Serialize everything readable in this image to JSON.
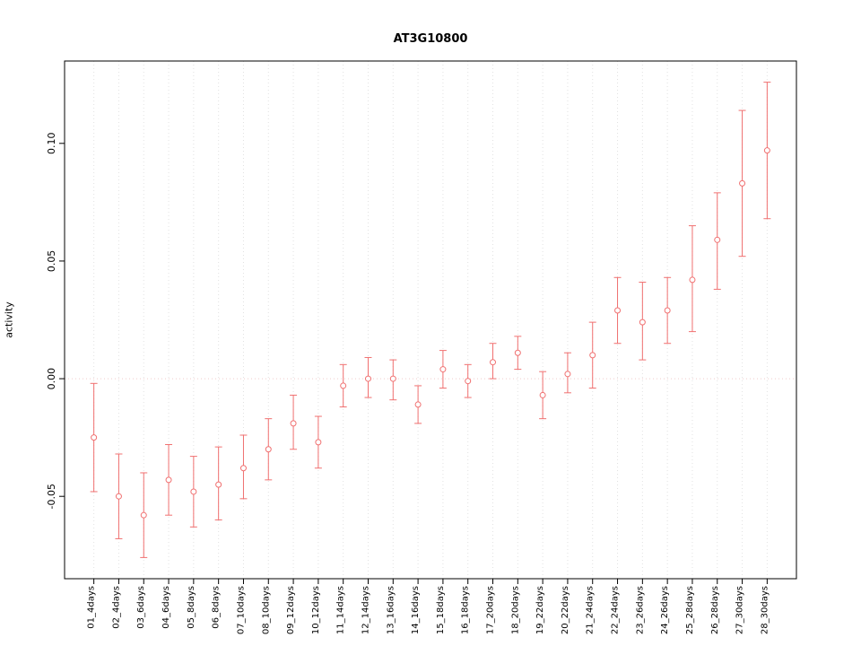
{
  "title": "AT3G10800",
  "ylabel": "activity",
  "chart_data": {
    "type": "scatter",
    "title": "AT3G10800",
    "xlabel": "",
    "ylabel": "activity",
    "legend": "none",
    "grid": true,
    "categories": [
      "01_4days",
      "02_4days",
      "03_6days",
      "04_6days",
      "05_8days",
      "06_8days",
      "07_10days",
      "08_10days",
      "09_12days",
      "10_12days",
      "11_14days",
      "12_14days",
      "13_16days",
      "14_16days",
      "15_18days",
      "16_18days",
      "17_20days",
      "18_20days",
      "19_22days",
      "20_22days",
      "21_24days",
      "22_24days",
      "23_26days",
      "24_26days",
      "25_28days",
      "26_28days",
      "27_30days",
      "28_30days"
    ],
    "values": [
      -0.025,
      -0.05,
      -0.058,
      -0.043,
      -0.048,
      -0.045,
      -0.038,
      -0.03,
      -0.019,
      -0.027,
      -0.003,
      0.0,
      0.0,
      -0.011,
      0.004,
      -0.001,
      0.007,
      0.011,
      -0.007,
      0.002,
      0.01,
      0.029,
      0.024,
      0.029,
      0.042,
      0.059,
      0.083,
      0.097
    ],
    "error_low": [
      -0.048,
      -0.068,
      -0.076,
      -0.058,
      -0.063,
      -0.06,
      -0.051,
      -0.043,
      -0.03,
      -0.038,
      -0.012,
      -0.008,
      -0.009,
      -0.019,
      -0.004,
      -0.008,
      0.0,
      0.004,
      -0.017,
      -0.006,
      -0.004,
      0.015,
      0.008,
      0.015,
      0.02,
      0.038,
      0.052,
      0.068
    ],
    "error_high": [
      -0.002,
      -0.032,
      -0.04,
      -0.028,
      -0.033,
      -0.029,
      -0.024,
      -0.017,
      -0.007,
      -0.016,
      0.006,
      0.009,
      0.008,
      -0.003,
      0.012,
      0.006,
      0.015,
      0.018,
      0.003,
      0.011,
      0.024,
      0.043,
      0.041,
      0.043,
      0.065,
      0.079,
      0.114,
      0.126
    ],
    "yticks": [
      -0.05,
      0.0,
      0.05,
      0.1
    ],
    "ytick_labels": [
      "-0.05",
      "0.00",
      "0.05",
      "0.10"
    ],
    "ylim": [
      -0.085,
      0.135
    ],
    "point_color": "#f07070",
    "grid_color": "#e2e2e2",
    "zero_line_color": "#f0caca",
    "axis_color": "#000000"
  }
}
